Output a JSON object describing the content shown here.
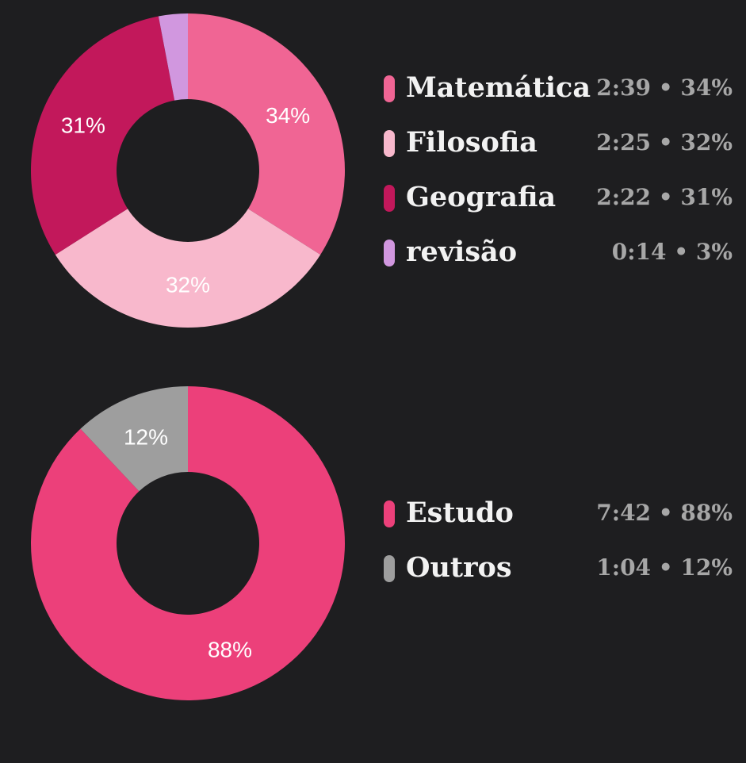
{
  "chart_data": [
    {
      "type": "pie",
      "id": "subjects",
      "categories": [
        "Matemática",
        "Filosofia",
        "Geografia",
        "revisão"
      ],
      "values": [
        34,
        32,
        31,
        3
      ],
      "slice_labels": [
        "34%",
        "32%",
        "31%",
        ""
      ],
      "durations": [
        "2:39",
        "2:25",
        "2:22",
        "0:14"
      ],
      "percent_text": [
        "34%",
        "32%",
        "31%",
        "3%"
      ],
      "colors": [
        "#f06594",
        "#f8b8cc",
        "#c2185b",
        "#d197df"
      ],
      "legend_position": "right"
    },
    {
      "type": "pie",
      "id": "activity",
      "categories": [
        "Estudo",
        "Outros"
      ],
      "values": [
        88,
        12
      ],
      "slice_labels": [
        "88%",
        "12%"
      ],
      "durations": [
        "7:42",
        "1:04"
      ],
      "percent_text": [
        "88%",
        "12%"
      ],
      "colors": [
        "#ec407a",
        "#9e9e9e"
      ],
      "legend_position": "right"
    }
  ],
  "legend_separator": "•"
}
